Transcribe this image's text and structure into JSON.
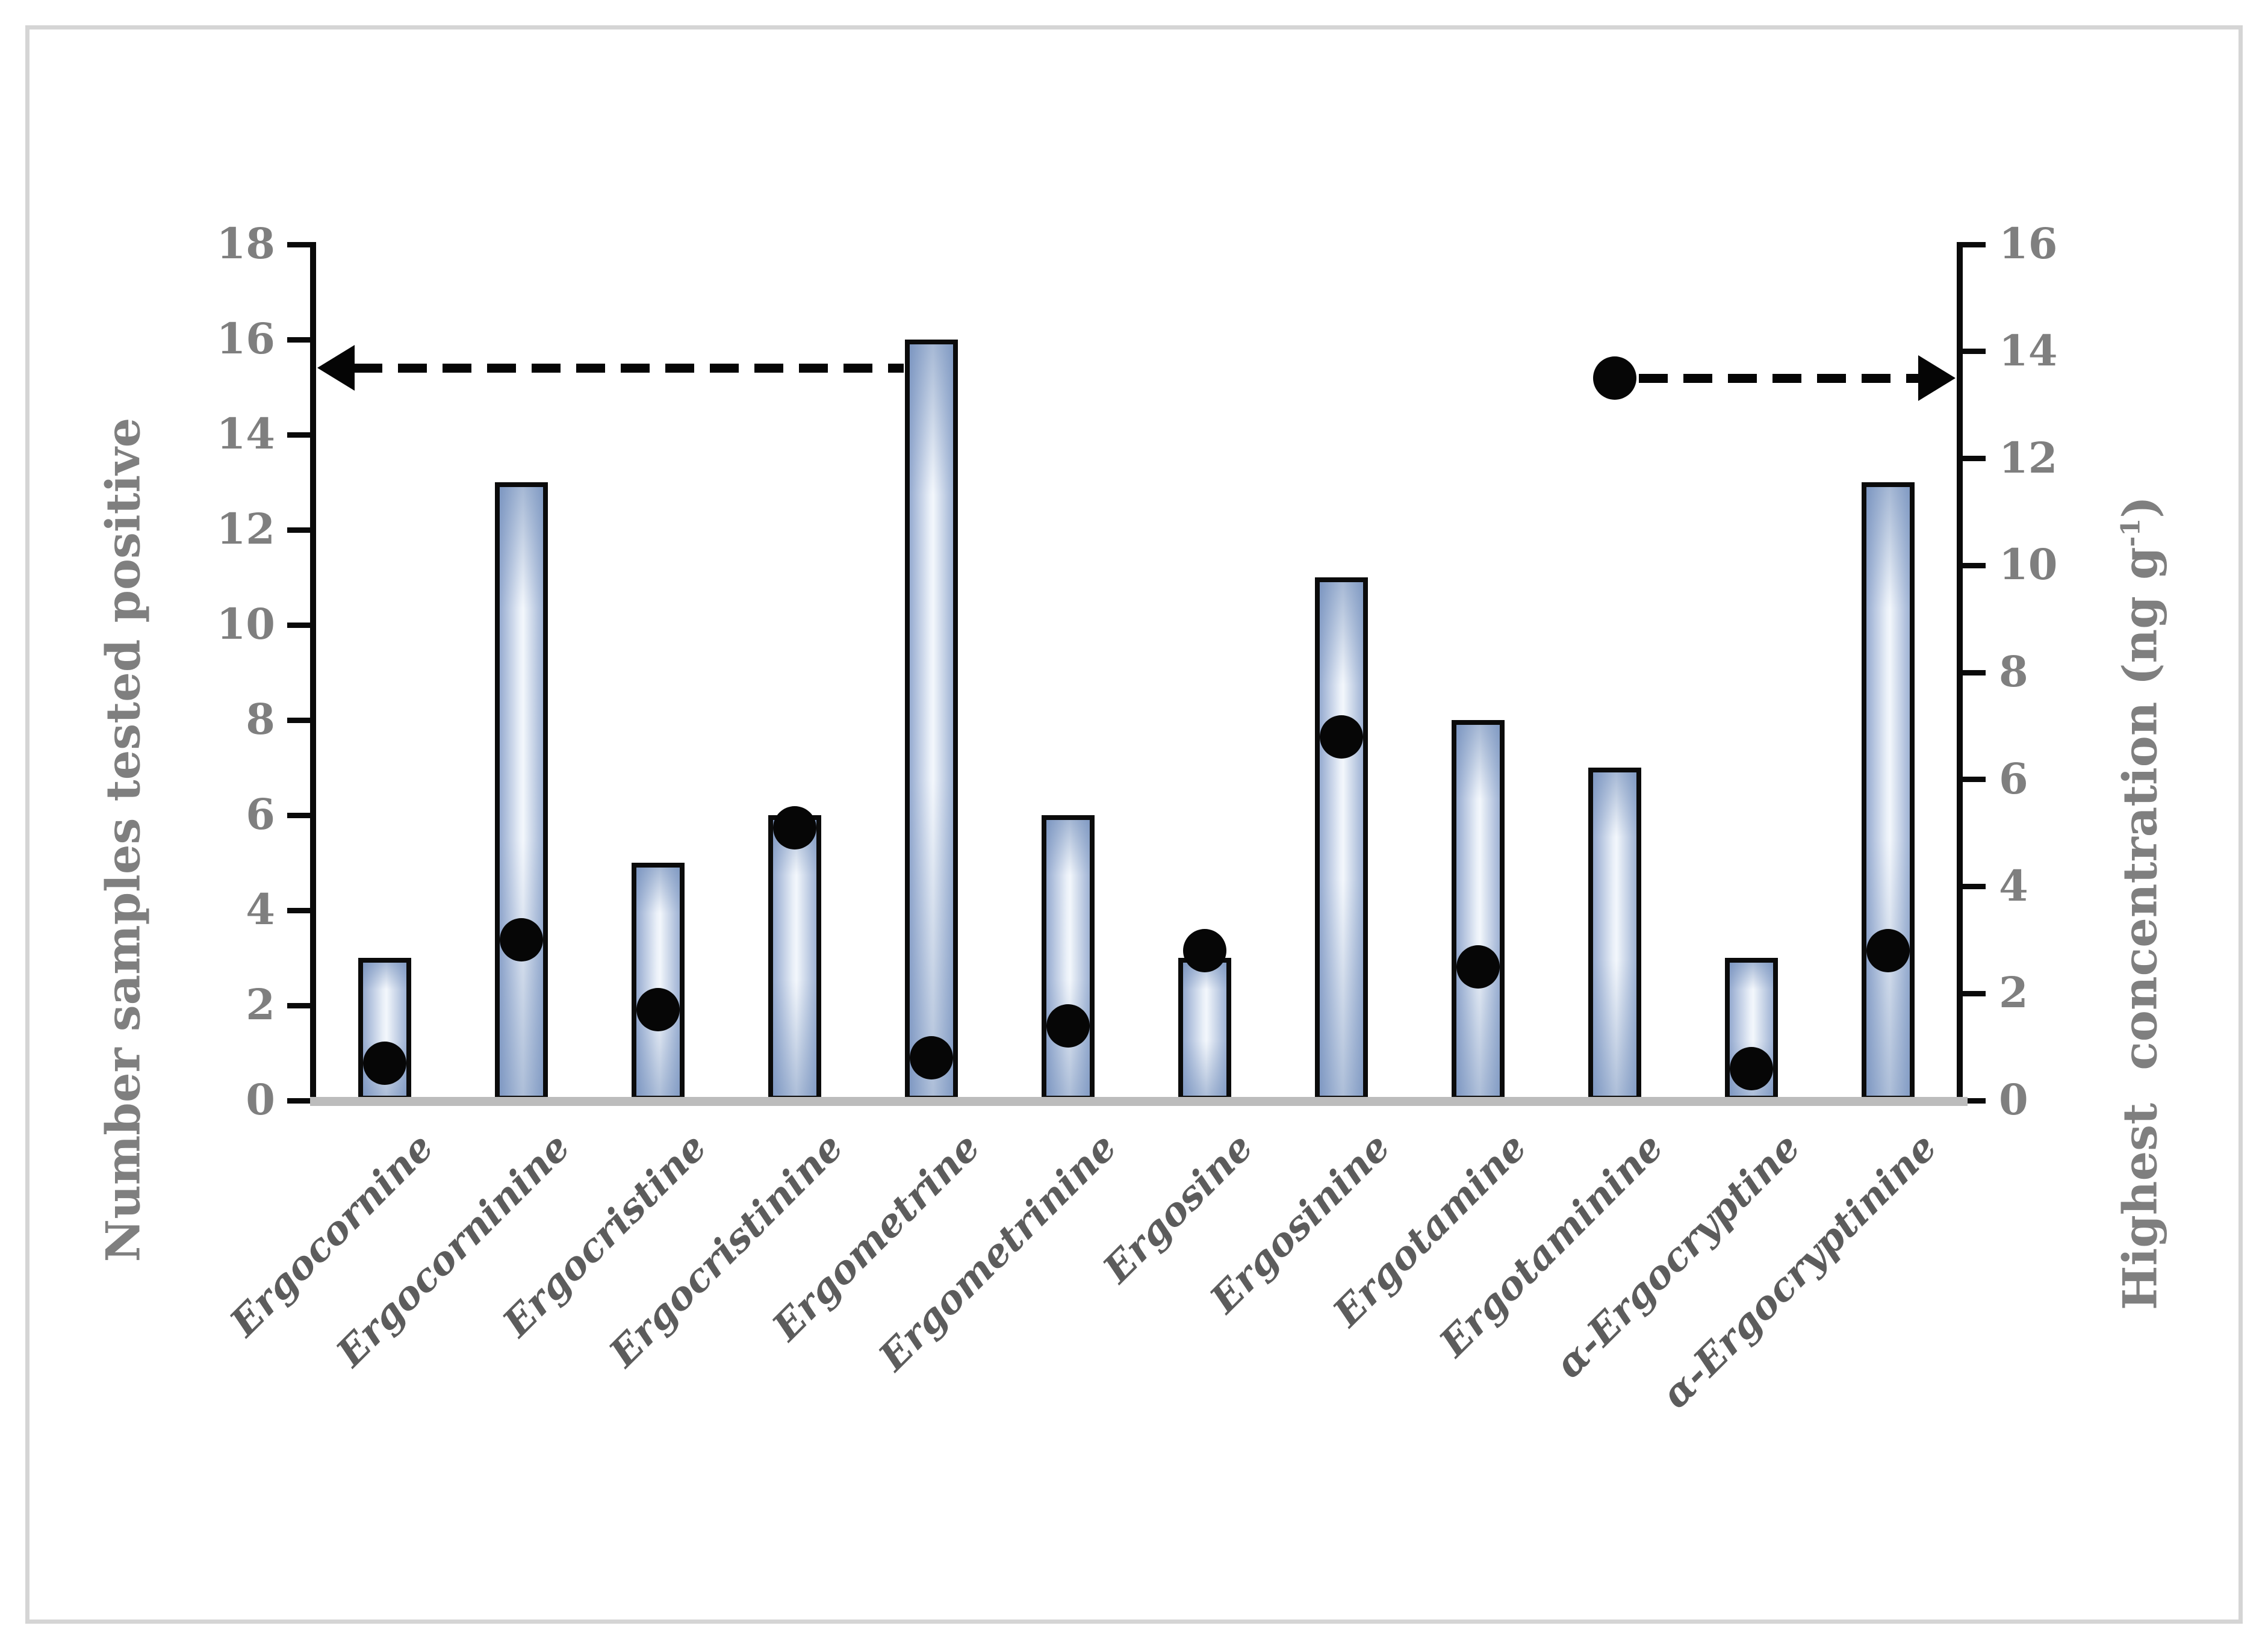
{
  "chart_data": {
    "type": "bar",
    "title": "",
    "categories": [
      "Ergocornine",
      "Ergocorninine",
      "Ergocristine",
      "Ergocristinine",
      "Ergometrine",
      "Ergometrinine",
      "Ergosine",
      "Ergosinine",
      "Ergotamine",
      "Ergotaminine",
      "α-Ergocryptine",
      "α-Ergocryptinine"
    ],
    "series": [
      {
        "name": "Number samples tested positive",
        "type": "bar",
        "axis": "left",
        "values": [
          3,
          13,
          5,
          6,
          16,
          6,
          3,
          11,
          8,
          7,
          3,
          13
        ]
      },
      {
        "name": "Highest concentration (ng g-1)",
        "type": "scatter",
        "axis": "right",
        "values": [
          0.7,
          3.0,
          1.7,
          5.1,
          0.8,
          1.4,
          2.8,
          6.8,
          2.5,
          13.5,
          0.6,
          2.8
        ]
      }
    ],
    "left_axis": {
      "title": "Number samples tested positive",
      "min": 0,
      "max": 18,
      "ticks": [
        0,
        2,
        4,
        6,
        8,
        10,
        12,
        14,
        16,
        18
      ]
    },
    "right_axis": {
      "title_prefix": "Highest  concentration (ng g",
      "title_sup": "-1",
      "title_suffix": ")",
      "min": 0,
      "max": 16,
      "ticks": [
        0,
        2,
        4,
        6,
        8,
        10,
        12,
        14,
        16
      ]
    },
    "annotations": [
      {
        "type": "dashed-arrow",
        "points_to": "left-axis",
        "y_axis": "left",
        "y": 15.4,
        "to_category": 4
      },
      {
        "type": "dashed-arrow",
        "points_to": "right-axis",
        "y_axis": "right",
        "y": 13.5,
        "from_category": 9
      }
    ],
    "legend": false,
    "grid": false,
    "ylim": [
      0,
      18
    ],
    "y2lim": [
      0,
      16
    ]
  },
  "colors": {
    "bar_edge": "#96abd0",
    "bar_center": "#f3f7fc",
    "bar_border": "#0b0b0b",
    "dot": "#060606",
    "axis": "#0a0a0a",
    "tick_text": "#7f7f7f",
    "category_text": "#5c5c5c",
    "baseline": "#bcbcbc",
    "frame": "#d5d5d5"
  }
}
